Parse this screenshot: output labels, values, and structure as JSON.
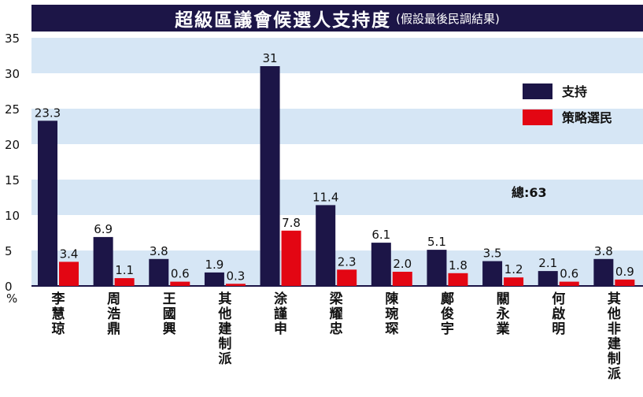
{
  "title": "超級區議會候選人支持度",
  "subtitle": "(假設最後民調結果)",
  "ylabel": "%",
  "total_label": "總:63",
  "colors": {
    "support": "#1c1547",
    "strategic": "#e30613",
    "band": "#d6e6f5",
    "title_bg": "#1c1547"
  },
  "chart_data": {
    "type": "bar",
    "title": "超級區議會候選人支持度",
    "subtitle": "(假設最後民調結果)",
    "ylabel": "%",
    "ylim": [
      0,
      35
    ],
    "yticks": [
      0,
      5,
      10,
      15,
      20,
      25,
      30,
      35
    ],
    "grid": "alternating horizontal bands",
    "legend": "top-right",
    "categories": [
      "李慧琼",
      "周浩鼎",
      "王國興",
      "其他建制派",
      "涂謹申",
      "梁耀忠",
      "陳琬琛",
      "鄺俊宇",
      "關永業",
      "何啟明",
      "其他非建制派"
    ],
    "series": [
      {
        "name": "支持",
        "color": "#1c1547",
        "values": [
          23.3,
          6.9,
          3.8,
          1.9,
          31,
          11.4,
          6.1,
          5.1,
          3.5,
          2.1,
          3.8
        ]
      },
      {
        "name": "策略選民",
        "color": "#e30613",
        "values": [
          3.4,
          1.1,
          0.6,
          0.3,
          7.8,
          2.3,
          2.0,
          1.8,
          1.2,
          0.6,
          0.9
        ]
      }
    ],
    "value_labels": [
      [
        "23.3",
        "6.9",
        "3.8",
        "1.9",
        "31",
        "11.4",
        "6.1",
        "5.1",
        "3.5",
        "2.1",
        "3.8"
      ],
      [
        "3.4",
        "1.1",
        "0.6",
        "0.3",
        "7.8",
        "2.3",
        "2.0",
        "1.8",
        "1.2",
        "0.6",
        "0.9"
      ]
    ],
    "annotation": "總:63"
  }
}
